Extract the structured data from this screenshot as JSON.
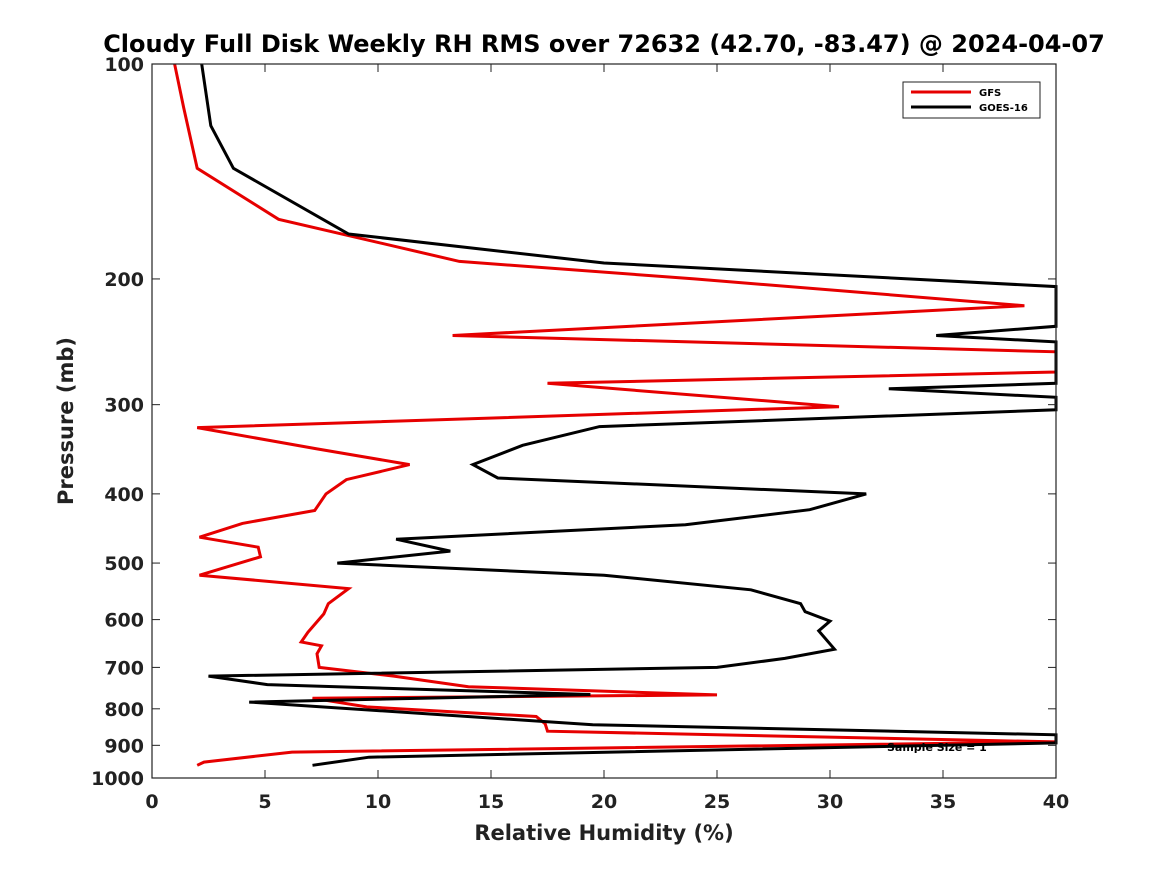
{
  "chart_data": {
    "type": "line",
    "orientation": "vertical-profile",
    "title": "Cloudy Full Disk Weekly RH RMS over 72632 (42.70, -83.47) @ 2024-04-07",
    "xlabel": "Relative Humidity (%)",
    "ylabel": "Pressure (mb)",
    "xlim": [
      0,
      40
    ],
    "ylim": [
      1000,
      100
    ],
    "yscale": "log",
    "y_reversed": true,
    "grid": false,
    "legend_position": "top-right",
    "x_ticks": [
      0,
      5,
      10,
      15,
      20,
      25,
      30,
      35,
      40
    ],
    "y_ticks": [
      100,
      200,
      300,
      400,
      500,
      600,
      700,
      800,
      900,
      1000
    ],
    "annotation": "Sample Size = 1",
    "series": [
      {
        "name": "GFS",
        "color": "#e60000",
        "points": [
          [
            1.0,
            100
          ],
          [
            1.4,
            115
          ],
          [
            2.0,
            140
          ],
          [
            5.6,
            165
          ],
          [
            13.6,
            189
          ],
          [
            24.0,
            200
          ],
          [
            38.6,
            218
          ],
          [
            13.3,
            240
          ],
          [
            40,
            253
          ],
          [
            40,
            270
          ],
          [
            17.5,
            280
          ],
          [
            30.4,
            302
          ],
          [
            2.0,
            323
          ],
          [
            7.3,
            346
          ],
          [
            11.4,
            364
          ],
          [
            8.6,
            382
          ],
          [
            7.7,
            400
          ],
          [
            7.2,
            422
          ],
          [
            4.0,
            440
          ],
          [
            2.1,
            460
          ],
          [
            4.7,
            475
          ],
          [
            4.8,
            490
          ],
          [
            2.1,
            520
          ],
          [
            8.7,
            543
          ],
          [
            7.8,
            570
          ],
          [
            7.6,
            589
          ],
          [
            6.9,
            625
          ],
          [
            6.6,
            645
          ],
          [
            7.5,
            653
          ],
          [
            7.3,
            670
          ],
          [
            7.4,
            700
          ],
          [
            10.7,
            720
          ],
          [
            14.0,
            745
          ],
          [
            25.0,
            765
          ],
          [
            7.1,
            773
          ],
          [
            9.5,
            795
          ],
          [
            17.0,
            820
          ],
          [
            17.4,
            840
          ],
          [
            17.5,
            860
          ],
          [
            40,
            890
          ],
          [
            6.2,
            920
          ],
          [
            2.3,
            950
          ],
          [
            2.0,
            960
          ]
        ]
      },
      {
        "name": "GOES-16",
        "color": "#000000",
        "points": [
          [
            2.2,
            100
          ],
          [
            2.6,
            122
          ],
          [
            3.6,
            140
          ],
          [
            8.7,
            173
          ],
          [
            20.0,
            190
          ],
          [
            40,
            205
          ],
          [
            40,
            233
          ],
          [
            34.7,
            240
          ],
          [
            40,
            245
          ],
          [
            40,
            280
          ],
          [
            32.6,
            285
          ],
          [
            40,
            293
          ],
          [
            40,
            305
          ],
          [
            19.8,
            322
          ],
          [
            16.4,
            342
          ],
          [
            14.2,
            364
          ],
          [
            15.3,
            380
          ],
          [
            31.6,
            400
          ],
          [
            29.1,
            421
          ],
          [
            23.6,
            442
          ],
          [
            10.8,
            463
          ],
          [
            13.2,
            481
          ],
          [
            8.2,
            500
          ],
          [
            20.0,
            520
          ],
          [
            26.5,
            545
          ],
          [
            28.7,
            570
          ],
          [
            28.9,
            585
          ],
          [
            30.0,
            603
          ],
          [
            29.5,
            622
          ],
          [
            30.2,
            660
          ],
          [
            28.0,
            680
          ],
          [
            25.0,
            700
          ],
          [
            2.5,
            720
          ],
          [
            5.1,
            740
          ],
          [
            19.4,
            764
          ],
          [
            4.3,
            783
          ],
          [
            19.5,
            842
          ],
          [
            40,
            870
          ],
          [
            40,
            893
          ],
          [
            9.6,
            935
          ],
          [
            7.1,
            960
          ]
        ]
      }
    ]
  }
}
